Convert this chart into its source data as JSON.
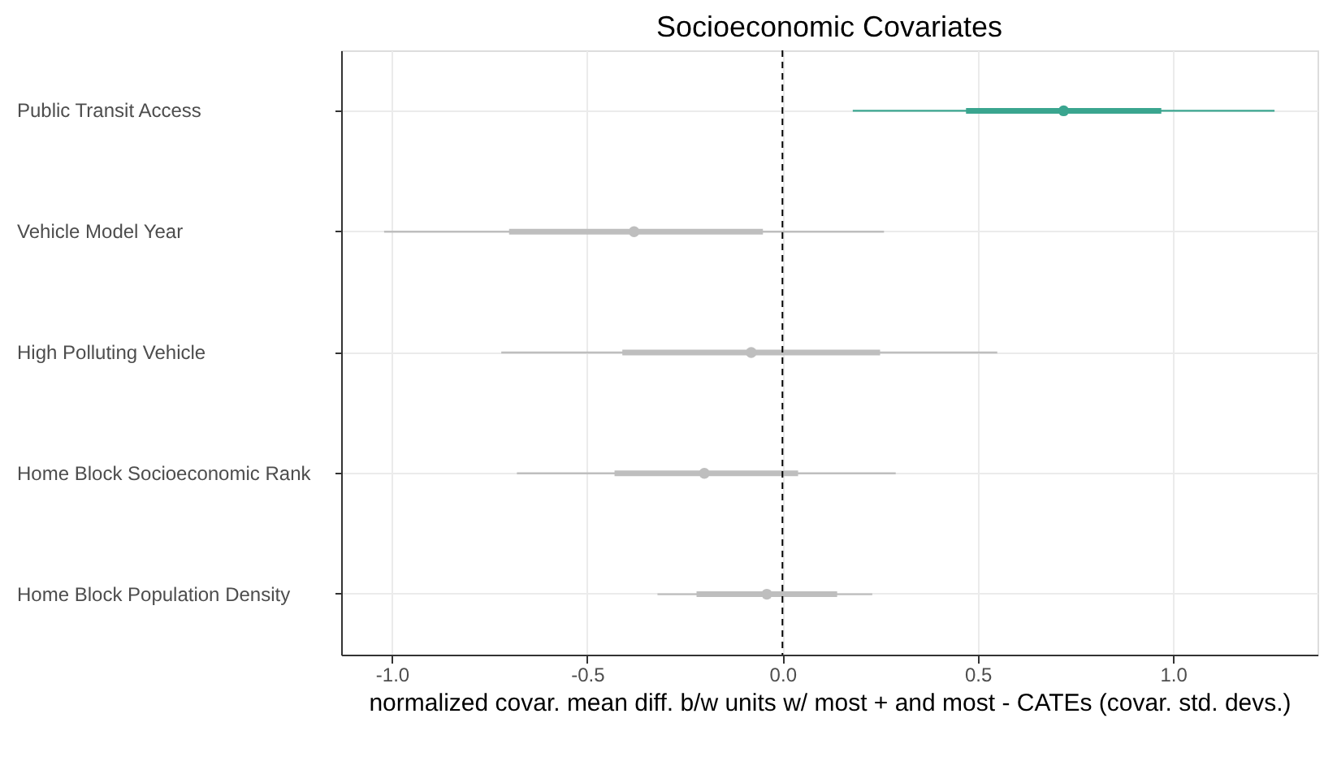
{
  "chart_data": {
    "type": "scatter",
    "orientation": "horizontal",
    "title": "Socioeconomic Covariates",
    "xlabel": "normalized covar. mean diff. b/w units w/ most + and most - CATEs (covar. std. devs.)",
    "categories": [
      "Public Transit Access",
      "Vehicle Model Year",
      "High Polluting Vehicle",
      "Home Block Socioeconomic Rank",
      "Home Block Population Density"
    ],
    "series": [
      {
        "marker": "circle",
        "colors": [
          "#3aa58f",
          "#bebebe",
          "#bebebe",
          "#bebebe",
          "#bebebe"
        ],
        "values": [
          0.72,
          -0.38,
          -0.08,
          -0.2,
          -0.04
        ],
        "errors": [
          [
            0.18,
            1.26
          ],
          [
            -1.02,
            0.26
          ],
          [
            -0.72,
            0.55
          ],
          [
            -0.68,
            0.29
          ],
          [
            -0.32,
            0.23
          ]
        ]
      },
      {
        "type": "bar",
        "colors": [
          "#3aa58f",
          "#bebebe",
          "#bebebe",
          "#bebebe",
          "#bebebe"
        ],
        "base": [
          0.47,
          -0.7,
          -0.41,
          -0.43,
          -0.22
        ],
        "values": [
          0.5,
          0.65,
          0.66,
          0.47,
          0.36
        ]
      }
    ],
    "xlim": [
      -1.13,
      1.37
    ],
    "xticks": [
      {
        "value": -1,
        "label": "-1.0"
      },
      {
        "value": -0.5,
        "label": "-0.5"
      },
      {
        "value": 0,
        "label": "0.0"
      },
      {
        "value": 0.5,
        "label": "0.5"
      },
      {
        "value": 1,
        "label": "1.0"
      }
    ],
    "ref_lines": [
      {
        "axis": "x",
        "value": 0,
        "color": "#000000",
        "line_style": "dashed"
      }
    ],
    "grid": true
  }
}
